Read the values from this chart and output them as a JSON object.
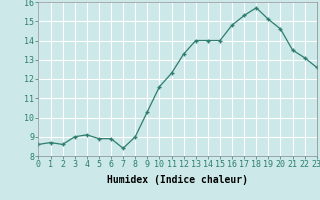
{
  "x": [
    0,
    1,
    2,
    3,
    4,
    5,
    6,
    7,
    8,
    9,
    10,
    11,
    12,
    13,
    14,
    15,
    16,
    17,
    18,
    19,
    20,
    21,
    22,
    23
  ],
  "y": [
    8.6,
    8.7,
    8.6,
    9.0,
    9.1,
    8.9,
    8.9,
    8.4,
    9.0,
    10.3,
    11.6,
    12.3,
    13.3,
    14.0,
    14.0,
    14.0,
    14.8,
    15.3,
    15.7,
    15.1,
    14.6,
    13.5,
    13.1,
    12.6
  ],
  "xlabel": "Humidex (Indice chaleur)",
  "xlim": [
    0,
    23
  ],
  "ylim": [
    8,
    16
  ],
  "yticks": [
    8,
    9,
    10,
    11,
    12,
    13,
    14,
    15,
    16
  ],
  "xticks": [
    0,
    1,
    2,
    3,
    4,
    5,
    6,
    7,
    8,
    9,
    10,
    11,
    12,
    13,
    14,
    15,
    16,
    17,
    18,
    19,
    20,
    21,
    22,
    23
  ],
  "line_color": "#2e7d6e",
  "marker": "+",
  "bg_color": "#cce8e8",
  "grid_color": "#ffffff",
  "label_fontsize": 7,
  "tick_fontsize": 6
}
